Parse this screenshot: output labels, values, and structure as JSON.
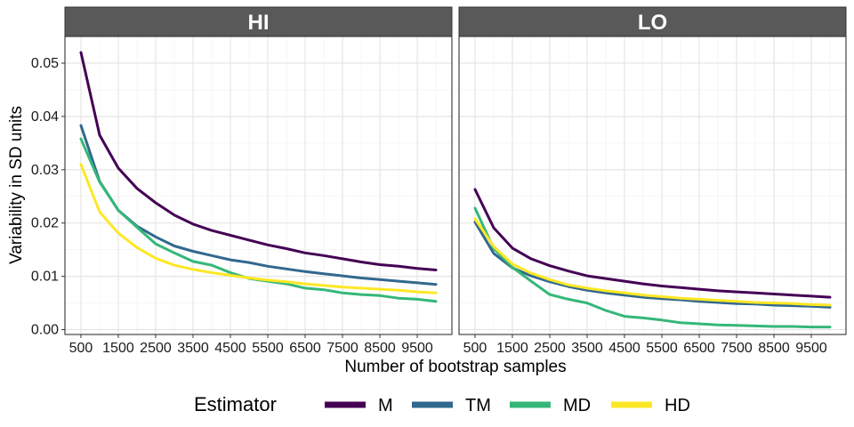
{
  "chart_data": {
    "type": "line",
    "xlabel": "Number of bootstrap samples",
    "ylabel": "Variability in SD units",
    "xlim": [
      500,
      10000
    ],
    "ylim": [
      0,
      0.055
    ],
    "x_ticks": [
      500,
      1500,
      2500,
      3500,
      4500,
      5500,
      6500,
      7500,
      8500,
      9500
    ],
    "x_tick_labels": [
      "500",
      "1500",
      "2500",
      "3500",
      "4500",
      "5500",
      "6500",
      "7500",
      "8500",
      "9500"
    ],
    "y_ticks": [
      0,
      0.01,
      0.02,
      0.03,
      0.04,
      0.05
    ],
    "y_tick_labels": [
      "0.00",
      "0.01",
      "0.02",
      "0.03",
      "0.04",
      "0.05"
    ],
    "grid": true,
    "legend": {
      "title": "Estimator",
      "position": "bottom",
      "entries": [
        "M",
        "TM",
        "MD",
        "HD"
      ]
    },
    "x": [
      500,
      1000,
      1500,
      2000,
      2500,
      3000,
      3500,
      4000,
      4500,
      5000,
      5500,
      6000,
      6500,
      7000,
      7500,
      8000,
      8500,
      9000,
      9500,
      10000
    ],
    "panels": [
      {
        "title": "HI",
        "series": [
          {
            "name": "M",
            "color": "#440154",
            "values": [
              0.052,
              0.0365,
              0.0303,
              0.0265,
              0.0238,
              0.0215,
              0.0198,
              0.0186,
              0.0177,
              0.0168,
              0.0159,
              0.0152,
              0.0144,
              0.0139,
              0.0133,
              0.0127,
              0.0122,
              0.0119,
              0.0115,
              0.0112
            ]
          },
          {
            "name": "TM",
            "color": "#31688E",
            "values": [
              0.0383,
              0.0278,
              0.0224,
              0.0194,
              0.0174,
              0.0157,
              0.0147,
              0.0139,
              0.0131,
              0.0126,
              0.0119,
              0.0114,
              0.0109,
              0.0105,
              0.0101,
              0.0097,
              0.0094,
              0.0091,
              0.0088,
              0.0085
            ]
          },
          {
            "name": "MD",
            "color": "#35B779",
            "values": [
              0.0358,
              0.0277,
              0.0224,
              0.0192,
              0.0161,
              0.0144,
              0.0128,
              0.0121,
              0.0107,
              0.0096,
              0.0091,
              0.0086,
              0.0078,
              0.0075,
              0.0069,
              0.0066,
              0.0064,
              0.0059,
              0.0057,
              0.0053
            ]
          },
          {
            "name": "HD",
            "color": "#FDE725",
            "values": [
              0.031,
              0.0221,
              0.0181,
              0.0154,
              0.0134,
              0.0121,
              0.0113,
              0.0107,
              0.0102,
              0.0097,
              0.0093,
              0.009,
              0.0086,
              0.0083,
              0.008,
              0.0078,
              0.0076,
              0.0074,
              0.0071,
              0.0069
            ]
          }
        ]
      },
      {
        "title": "LO",
        "series": [
          {
            "name": "M",
            "color": "#440154",
            "values": [
              0.0263,
              0.0191,
              0.0153,
              0.0133,
              0.012,
              0.011,
              0.0101,
              0.0096,
              0.0091,
              0.0086,
              0.0082,
              0.0079,
              0.0076,
              0.0073,
              0.0071,
              0.0069,
              0.0067,
              0.0065,
              0.0063,
              0.0061
            ]
          },
          {
            "name": "TM",
            "color": "#31688E",
            "values": [
              0.0202,
              0.0143,
              0.0116,
              0.0101,
              0.009,
              0.0081,
              0.0074,
              0.0069,
              0.0065,
              0.0061,
              0.0058,
              0.0056,
              0.0053,
              0.0051,
              0.0049,
              0.0048,
              0.0046,
              0.0045,
              0.0044,
              0.0042
            ]
          },
          {
            "name": "MD",
            "color": "#35B779",
            "values": [
              0.0228,
              0.0152,
              0.0117,
              0.0091,
              0.0066,
              0.0057,
              0.005,
              0.0036,
              0.0025,
              0.0022,
              0.0018,
              0.0013,
              0.0011,
              0.0009,
              0.0008,
              0.0007,
              0.0006,
              0.0006,
              0.0005,
              0.0005
            ]
          },
          {
            "name": "HD",
            "color": "#FDE725",
            "values": [
              0.0208,
              0.0156,
              0.0123,
              0.0106,
              0.0094,
              0.0084,
              0.0078,
              0.0073,
              0.0069,
              0.0065,
              0.0062,
              0.0059,
              0.0057,
              0.0055,
              0.0053,
              0.0051,
              0.005,
              0.0049,
              0.0047,
              0.0046
            ]
          }
        ]
      }
    ]
  }
}
